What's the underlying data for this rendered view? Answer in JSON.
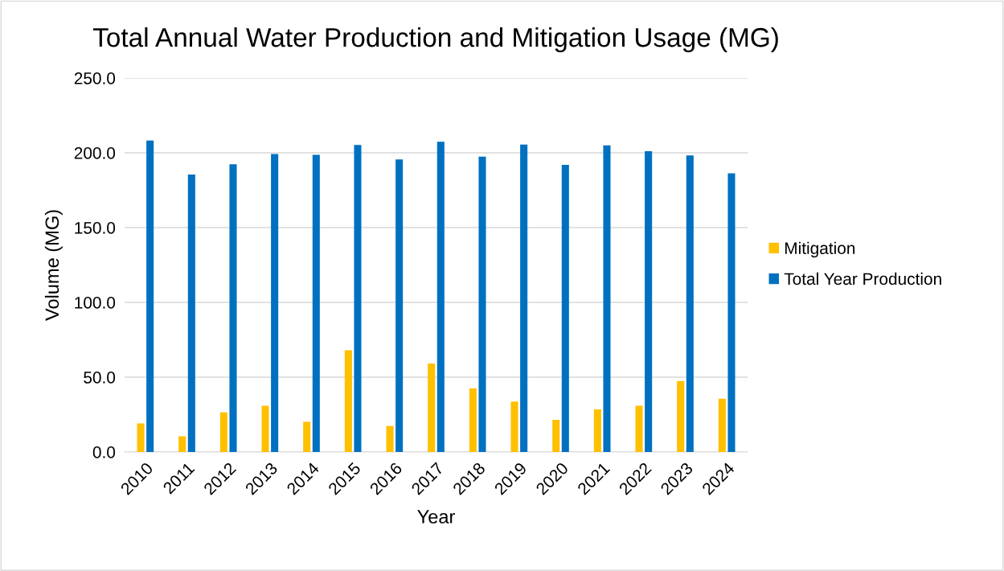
{
  "chart_data": {
    "type": "bar",
    "title": "Total Annual Water Production and Mitigation Usage (MG)",
    "xlabel": "Year",
    "ylabel": "Volume (MG)",
    "categories": [
      "2010",
      "2011",
      "2012",
      "2013",
      "2014",
      "2015",
      "2016",
      "2017",
      "2018",
      "2019",
      "2020",
      "2021",
      "2022",
      "2023",
      "2024"
    ],
    "series": [
      {
        "name": "Mitigation",
        "color": "#ffc000",
        "values": [
          19.1,
          10.5,
          26.5,
          30.9,
          20.2,
          68.0,
          17.4,
          59.1,
          42.5,
          33.7,
          21.5,
          28.5,
          30.9,
          47.5,
          35.6
        ]
      },
      {
        "name": "Total Year Production",
        "color": "#0070c0",
        "values": [
          208.2,
          185.5,
          192.3,
          199.2,
          198.7,
          205.2,
          195.6,
          207.4,
          197.5,
          205.5,
          192.0,
          205.0,
          201.1,
          198.3,
          186.3
        ]
      }
    ],
    "ylim": [
      0,
      250
    ],
    "yticks": [
      {
        "value": 0,
        "label": "0.0"
      },
      {
        "value": 50,
        "label": "50.0"
      },
      {
        "value": 100,
        "label": "100.0"
      },
      {
        "value": 150,
        "label": "150.0"
      },
      {
        "value": 200,
        "label": "200.0"
      },
      {
        "value": 250,
        "label": "250.0"
      }
    ],
    "grid": "y",
    "legend": "right"
  }
}
